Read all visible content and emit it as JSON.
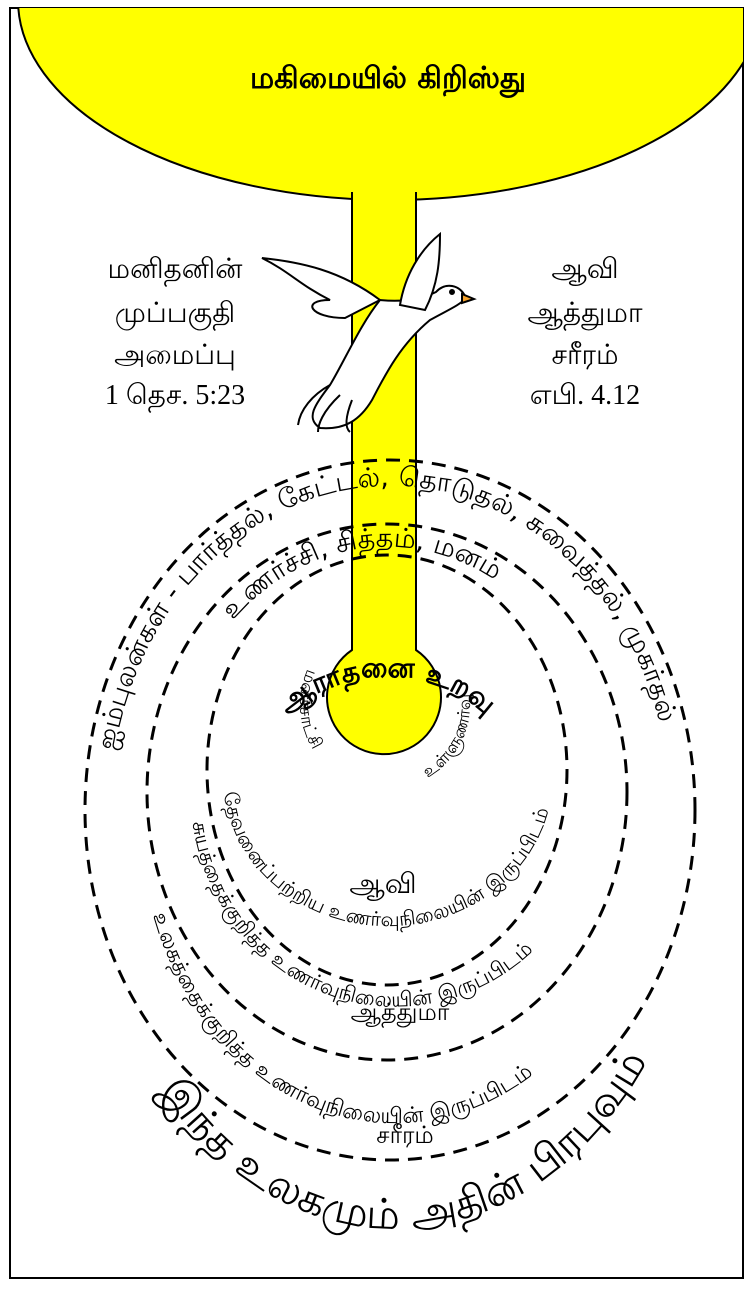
{
  "title": "மகிமையில் கிறிஸ்து",
  "left_text": [
    "மனிதனின்",
    "முப்பகுதி",
    "அமைப்பு",
    "1 தெச. 5:23"
  ],
  "right_text": [
    "ஆவி",
    "ஆத்துமா",
    "சரீரம்",
    "எபி. 4.12"
  ],
  "senses_ring": "ஐம்புலன்கள் - பார்த்தல், கேட்டல், தொடுதல், சுவைத்தல், முகர்தல்",
  "soul_ring": "உணர்ச்சி, சித்தம், மனம்",
  "spirit_ring": "ஆராதனை உறவு",
  "conscience": "மனச்சாட்சி",
  "intuition": "உள்ளுணர்வு",
  "spirit_seat": "தேவனைப்பற்றிய உணர்வுநிலையின் இருப்பிடம்",
  "spirit_label": "ஆவி",
  "soul_seat": "சுயத்தைக்குறித்த உணர்வுநிலையின் இருப்பிடம்",
  "soul_label": "ஆத்துமா",
  "body_seat": "உலகத்தைக்குறித்த உணர்வுநிலையின் இருப்பிடம்",
  "body_label": "சரீரம்",
  "world_caption": "இந்த உலகமும் அதின் பிரபுவும்"
}
